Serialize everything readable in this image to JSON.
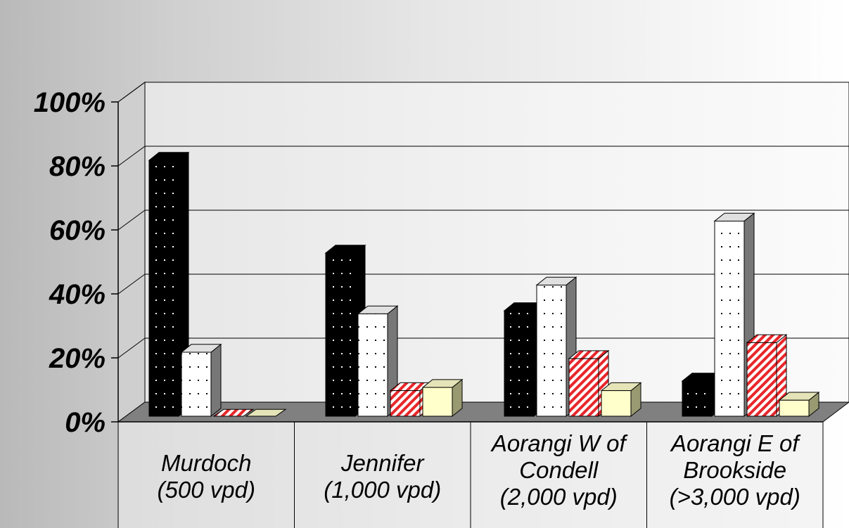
{
  "chart_data": {
    "type": "bar",
    "title": "",
    "xlabel": "",
    "ylabel": "",
    "ylim": [
      0,
      100
    ],
    "yticks": [
      "0%",
      "20%",
      "40%",
      "60%",
      "80%",
      "100%"
    ],
    "categories": [
      [
        "Murdoch",
        "(500 vpd)"
      ],
      [
        "Jennifer",
        "(1,000 vpd)"
      ],
      [
        "Aorangi W of",
        "Condell",
        "(2,000 vpd)"
      ],
      [
        "Aorangi E of",
        "Brookside",
        "(>3,000 vpd)"
      ]
    ],
    "series": [
      {
        "values": [
          80,
          51,
          33,
          11
        ],
        "style": "black-dotted"
      },
      {
        "values": [
          20,
          32,
          41,
          61
        ],
        "style": "white-dotted"
      },
      {
        "values": [
          0,
          8,
          18,
          23
        ],
        "style": "red-striped"
      },
      {
        "values": [
          0,
          9,
          8,
          5
        ],
        "style": "cream-solid"
      }
    ],
    "grid": true,
    "three_d": true
  },
  "colors": {
    "black_bar": "#000000",
    "white_bar": "#ffffff",
    "red_bar": "#e8262a",
    "cream_bar": "#ffffcc",
    "floor": "#808080",
    "wall": "#f2f2f2"
  }
}
